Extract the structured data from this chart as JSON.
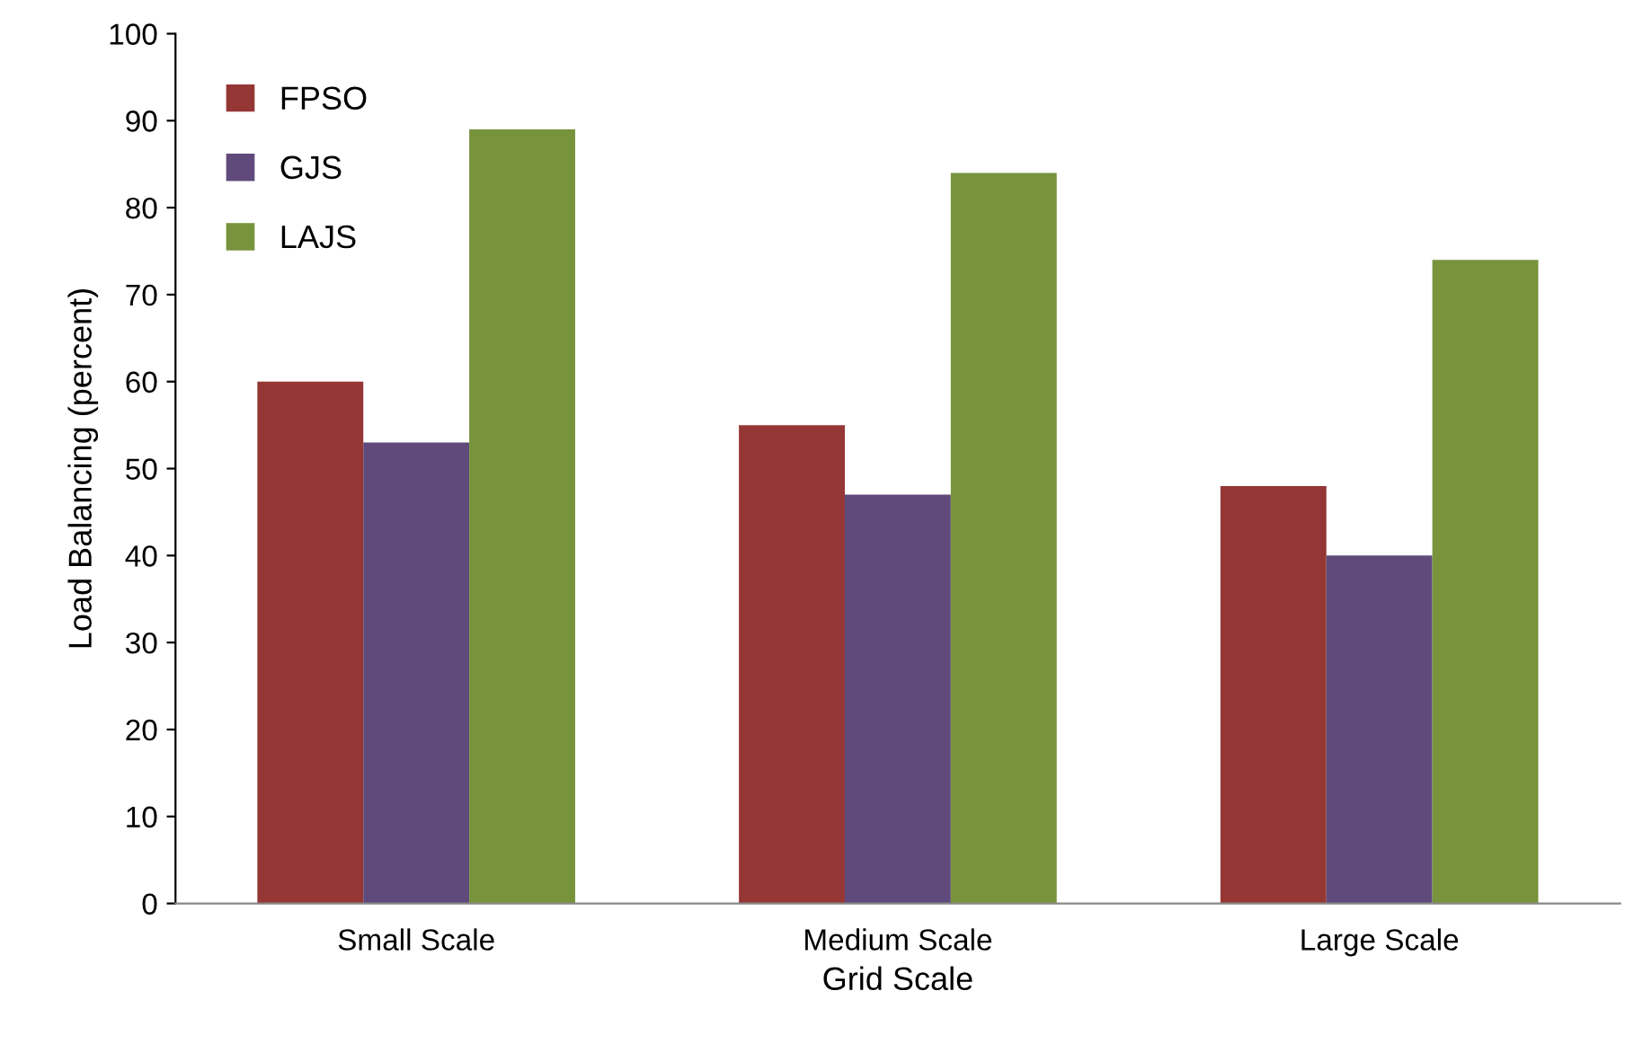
{
  "chart_data": {
    "type": "bar",
    "xlabel": "Grid Scale",
    "ylabel": "Load Balancing (percent)",
    "categories": [
      "Small Scale",
      "Medium Scale",
      "Large Scale"
    ],
    "series": [
      {
        "name": "FPSO",
        "color": "#953735",
        "values": [
          60,
          55,
          48
        ]
      },
      {
        "name": "GJS",
        "color": "#604a7b",
        "values": [
          53,
          47,
          40
        ]
      },
      {
        "name": "LAJS",
        "color": "#77933c",
        "values": [
          89,
          84,
          74
        ]
      }
    ],
    "ylim": [
      0,
      100
    ],
    "yticks": [
      0,
      10,
      20,
      30,
      40,
      50,
      60,
      70,
      80,
      90,
      100
    ],
    "grid": false,
    "legend": "top left"
  }
}
